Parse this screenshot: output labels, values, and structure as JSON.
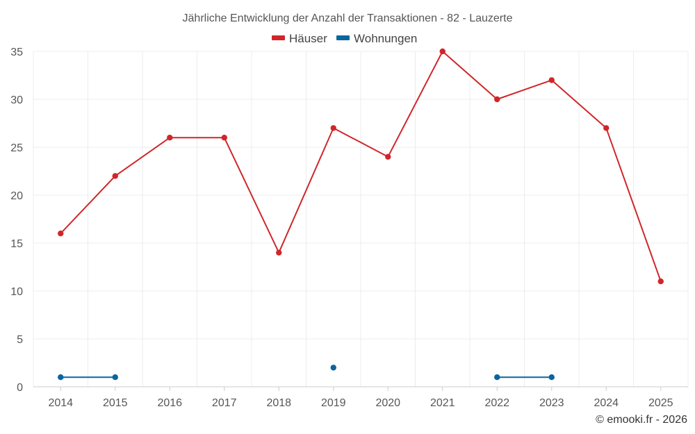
{
  "chart_data": {
    "type": "line",
    "title": "Jährliche Entwicklung der Anzahl der Transaktionen - 82 - Lauzerte",
    "x": [
      "2014",
      "2015",
      "2016",
      "2017",
      "2018",
      "2019",
      "2020",
      "2021",
      "2022",
      "2023",
      "2024",
      "2025"
    ],
    "ylim": [
      0,
      35
    ],
    "yticks": [
      0,
      5,
      10,
      15,
      20,
      25,
      30,
      35
    ],
    "grid": true,
    "legend": "top-center",
    "series": [
      {
        "name": "Häuser",
        "color": "#d0262a",
        "values": [
          16,
          22,
          26,
          26,
          14,
          27,
          24,
          35,
          30,
          32,
          27,
          11
        ]
      },
      {
        "name": "Wohnungen",
        "color": "#09659f",
        "values": [
          1,
          1,
          null,
          null,
          null,
          2,
          null,
          null,
          1,
          1,
          null,
          null
        ]
      }
    ]
  },
  "credit": "© emooki.fr - 2026"
}
